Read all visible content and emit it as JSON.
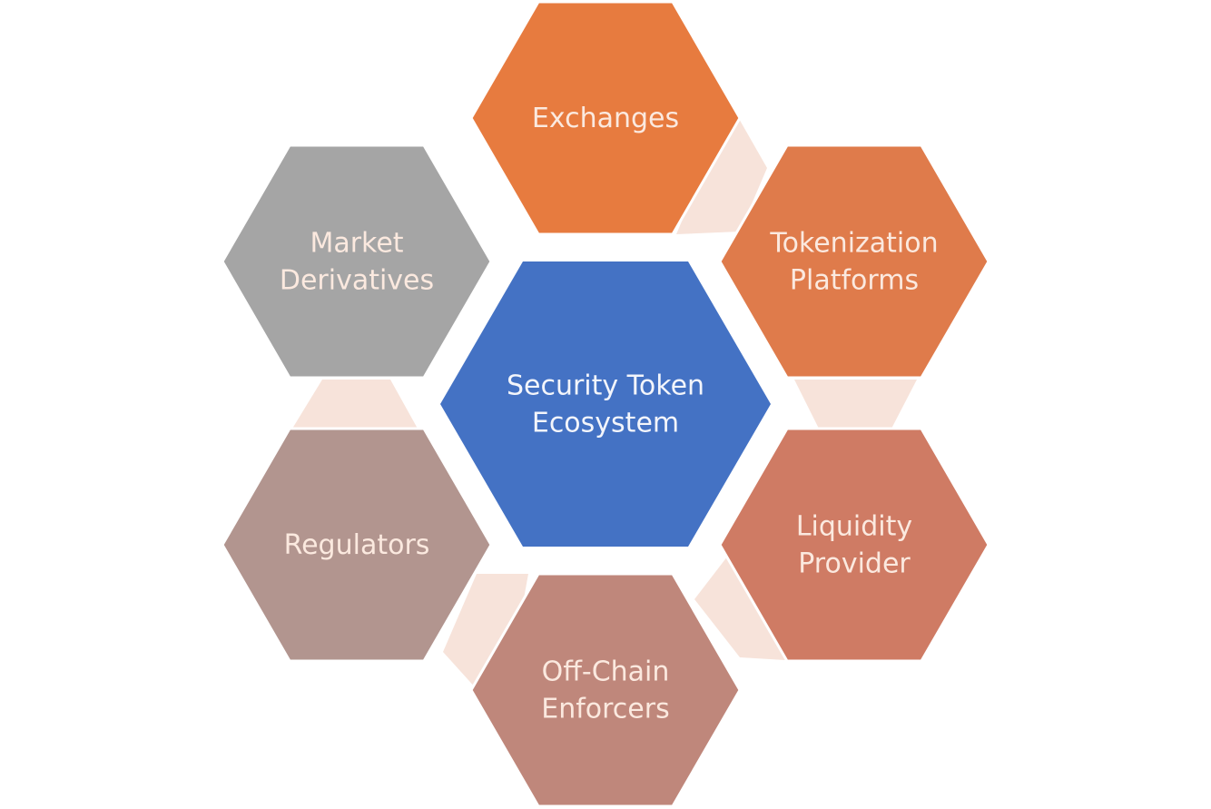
{
  "diagram": {
    "center": {
      "lines": [
        "Security Token",
        "Ecosystem"
      ],
      "color": "#4472c4"
    },
    "nodes": [
      {
        "id": "exchanges",
        "lines": [
          "Exchanges"
        ],
        "color": "#e77b3f"
      },
      {
        "id": "tokenization-platforms",
        "lines": [
          "Tokenization",
          "Platforms"
        ],
        "color": "#df7b4b"
      },
      {
        "id": "liquidity-provider",
        "lines": [
          "Liquidity",
          "Provider"
        ],
        "color": "#cf7b64"
      },
      {
        "id": "off-chain-enforcers",
        "lines": [
          "Off-Chain",
          "Enforcers"
        ],
        "color": "#bf877b"
      },
      {
        "id": "regulators",
        "lines": [
          "Regulators"
        ],
        "color": "#b2958f"
      },
      {
        "id": "market-derivatives",
        "lines": [
          "Market",
          "Derivatives"
        ],
        "color": "#a5a5a5"
      }
    ],
    "connector_color": "#f7e3da",
    "label_color": "#fbe9df"
  }
}
